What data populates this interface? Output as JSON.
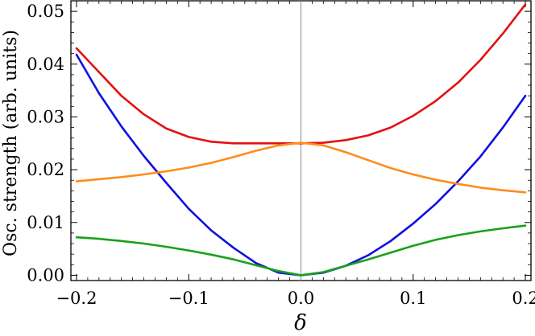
{
  "chart_data": {
    "type": "line",
    "title": "",
    "xlabel": "δ",
    "ylabel": "Osc. strength (arb. units)",
    "xlim": [
      -0.205,
      0.205
    ],
    "ylim": [
      -0.001,
      0.052
    ],
    "grid": false,
    "x_ticks": [
      -0.2,
      -0.1,
      0.0,
      0.1,
      0.2
    ],
    "x_tick_labels": [
      "−0.2",
      "−0.1",
      "0.0",
      "0.1",
      "0.2"
    ],
    "y_ticks": [
      0.0,
      0.01,
      0.02,
      0.03,
      0.04,
      0.05
    ],
    "y_tick_labels": [
      "0.00",
      "0.01",
      "0.02",
      "0.03",
      "0.04",
      "0.05"
    ],
    "x": [
      -0.2,
      -0.18,
      -0.16,
      -0.14,
      -0.12,
      -0.1,
      -0.08,
      -0.06,
      -0.04,
      -0.02,
      0.0,
      0.02,
      0.04,
      0.06,
      0.08,
      0.1,
      0.12,
      0.14,
      0.16,
      0.18,
      0.2
    ],
    "series": [
      {
        "color": "#e41010",
        "values": [
          0.043,
          0.0385,
          0.034,
          0.0305,
          0.0278,
          0.0262,
          0.0253,
          0.025,
          0.025,
          0.025,
          0.025,
          0.0251,
          0.0256,
          0.0265,
          0.028,
          0.0302,
          0.033,
          0.0365,
          0.0408,
          0.0458,
          0.0513
        ]
      },
      {
        "color": "#1010e0",
        "values": [
          0.0418,
          0.0345,
          0.0282,
          0.0226,
          0.0175,
          0.0126,
          0.0085,
          0.0052,
          0.0023,
          0.0005,
          0.0,
          0.0005,
          0.0018,
          0.0038,
          0.0065,
          0.0098,
          0.0135,
          0.0178,
          0.0225,
          0.028,
          0.034
        ]
      },
      {
        "color": "#ff8c1a",
        "values": [
          0.0178,
          0.0182,
          0.0186,
          0.0191,
          0.0197,
          0.0204,
          0.0213,
          0.0224,
          0.0236,
          0.0246,
          0.0251,
          0.0246,
          0.0233,
          0.0218,
          0.0203,
          0.0191,
          0.0181,
          0.0173,
          0.0166,
          0.0161,
          0.0157
        ]
      },
      {
        "color": "#1aa01a",
        "values": [
          0.0072,
          0.0069,
          0.0065,
          0.006,
          0.0054,
          0.0047,
          0.0039,
          0.003,
          0.0019,
          0.0008,
          0.0,
          0.0006,
          0.0018,
          0.003,
          0.0043,
          0.0056,
          0.0067,
          0.0076,
          0.0083,
          0.0089,
          0.0094
        ]
      }
    ]
  }
}
